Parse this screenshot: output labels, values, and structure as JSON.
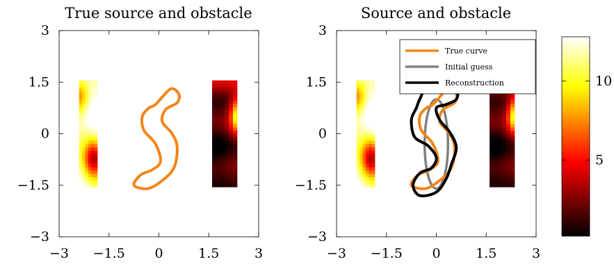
{
  "chart_data": [
    {
      "type": "heatmap",
      "title": "True source and obstacle",
      "xlabel": "",
      "ylabel": "",
      "xlim": [
        -3,
        3
      ],
      "ylim": [
        -3,
        3
      ],
      "xticks": [
        -3,
        -1.5,
        0,
        1.5,
        3
      ],
      "yticks": [
        -3,
        -1.5,
        0,
        1.5,
        3
      ],
      "xtick_labels": [
        "−3",
        "−1.5",
        "0",
        "1.5",
        "3"
      ],
      "ytick_labels": [
        "−3",
        "−1.5",
        "0",
        "1.5",
        "3"
      ],
      "grid": false,
      "source_blocks": [
        {
          "x_range": [
            -2.4,
            -1.85
          ],
          "y_range": [
            -1.55,
            1.55
          ]
        },
        {
          "x_range": [
            1.6,
            2.35
          ],
          "y_range": [
            -1.55,
            1.55
          ]
        }
      ],
      "curves": [
        {
          "role": "true",
          "color": "#f28517",
          "points": [
            [
              -0.1,
              0.85
            ],
            [
              0.35,
              1.3
            ],
            [
              0.6,
              1.15
            ],
            [
              0.55,
              0.9
            ],
            [
              0.2,
              0.7
            ],
            [
              0.1,
              0.35
            ],
            [
              0.4,
              0.0
            ],
            [
              0.55,
              -0.4
            ],
            [
              0.45,
              -1.0
            ],
            [
              0.05,
              -1.4
            ],
            [
              -0.35,
              -1.6
            ],
            [
              -0.75,
              -1.5
            ],
            [
              -0.55,
              -1.2
            ],
            [
              -0.2,
              -1.05
            ],
            [
              0.05,
              -0.8
            ],
            [
              -0.1,
              -0.3
            ],
            [
              -0.45,
              0.1
            ],
            [
              -0.5,
              0.5
            ],
            [
              -0.3,
              0.75
            ]
          ]
        }
      ]
    },
    {
      "type": "heatmap",
      "title": "Source and obstacle",
      "xlabel": "",
      "ylabel": "",
      "xlim": [
        -3,
        3
      ],
      "ylim": [
        -3,
        3
      ],
      "xticks": [
        -3,
        -1.5,
        0,
        1.5,
        3
      ],
      "yticks": [
        -3,
        -1.5,
        0,
        1.5,
        3
      ],
      "xtick_labels": [
        "−3",
        "−1.5",
        "0",
        "1.5",
        "3"
      ],
      "ytick_labels": [
        "−3",
        "−1.5",
        "0",
        "1.5",
        "3"
      ],
      "grid": false,
      "legend": {
        "placement": "top-right",
        "entries": [
          {
            "label": "True curve",
            "color": "#f28517"
          },
          {
            "label": "Initial guess",
            "color": "#808080"
          },
          {
            "label": "Reconstruction",
            "color": "#000000"
          }
        ]
      },
      "source_blocks": [
        {
          "x_range": [
            -2.4,
            -1.85
          ],
          "y_range": [
            -1.55,
            1.55
          ]
        },
        {
          "x_range": [
            1.6,
            2.35
          ],
          "y_range": [
            -1.55,
            1.55
          ]
        }
      ],
      "curves": [
        {
          "role": "true",
          "color": "#f28517",
          "points": [
            [
              -0.1,
              0.85
            ],
            [
              0.35,
              1.3
            ],
            [
              0.6,
              1.15
            ],
            [
              0.55,
              0.9
            ],
            [
              0.2,
              0.7
            ],
            [
              0.1,
              0.35
            ],
            [
              0.4,
              0.0
            ],
            [
              0.55,
              -0.4
            ],
            [
              0.45,
              -1.0
            ],
            [
              0.05,
              -1.4
            ],
            [
              -0.35,
              -1.6
            ],
            [
              -0.75,
              -1.5
            ],
            [
              -0.55,
              -1.2
            ],
            [
              -0.2,
              -1.05
            ],
            [
              0.05,
              -0.8
            ],
            [
              -0.1,
              -0.3
            ],
            [
              -0.45,
              0.1
            ],
            [
              -0.5,
              0.5
            ],
            [
              -0.3,
              0.75
            ]
          ]
        },
        {
          "role": "initial",
          "color": "#808080",
          "ellipse": {
            "cx": 0.0,
            "cy": -0.3,
            "rx": 0.35,
            "ry": 1.3
          }
        },
        {
          "role": "reconstruction",
          "color": "#000000",
          "points": [
            [
              -0.5,
              1.0
            ],
            [
              -0.3,
              1.3
            ],
            [
              0.2,
              1.35
            ],
            [
              0.6,
              1.25
            ],
            [
              0.6,
              1.0
            ],
            [
              0.3,
              0.85
            ],
            [
              0.0,
              0.75
            ],
            [
              0.1,
              0.4
            ],
            [
              0.4,
              0.05
            ],
            [
              0.6,
              -0.4
            ],
            [
              0.45,
              -0.9
            ],
            [
              0.3,
              -1.3
            ],
            [
              0.0,
              -1.7
            ],
            [
              -0.5,
              -1.8
            ],
            [
              -0.7,
              -1.5
            ],
            [
              -0.5,
              -1.15
            ],
            [
              -0.15,
              -1.0
            ],
            [
              0.0,
              -0.7
            ],
            [
              -0.25,
              -0.35
            ],
            [
              -0.65,
              -0.1
            ],
            [
              -0.75,
              0.4
            ],
            [
              -0.6,
              0.75
            ]
          ]
        }
      ]
    }
  ],
  "colorbar": {
    "range": [
      0.2,
      12.8
    ],
    "ticks": [
      5,
      10
    ],
    "tick_labels": [
      "5",
      "10"
    ],
    "colormap": "hot"
  }
}
